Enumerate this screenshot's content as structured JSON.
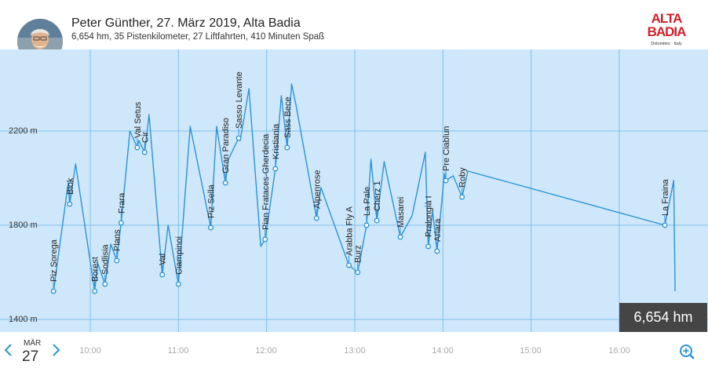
{
  "header": {
    "title": "Peter Günther, 27. März 2019, Alta Badia",
    "subtitle": "6,654 hm, 35 Pistenkilometer, 27 Liftfahrten, 410 Minuten Spaß",
    "logo_line1": "ALTA",
    "logo_line2": "BADIA",
    "logo_tagline": "Dolomites · Italy",
    "brand_color": "#d0202a"
  },
  "date": {
    "month": "MÄR",
    "day": "27"
  },
  "summary_box": "6,654 hm",
  "icons": {
    "prev": "chevron-left-icon",
    "next": "chevron-right-icon",
    "zoom": "zoom-in-icon",
    "avatar": "avatar"
  },
  "colors": {
    "plot_bg": "#cfe7fa",
    "line": "#2a94d6",
    "grid": "#7fc0ea"
  },
  "chart_data": {
    "type": "line",
    "title": "",
    "xlabel": "",
    "ylabel": "",
    "x_ticks": [
      "10:00",
      "11:00",
      "12:00",
      "13:00",
      "14:00",
      "15:00",
      "16:00"
    ],
    "y_ticks": [
      "2200 m",
      "1800 m",
      "1400 m"
    ],
    "ylim": [
      1400,
      2480
    ],
    "xlim": [
      "09:27",
      "16:55"
    ],
    "grid": true,
    "series": [
      {
        "points": [
          {
            "t": "09:35",
            "h": 1520
          },
          {
            "t": "09:45",
            "h": 1980
          },
          {
            "t": "09:46",
            "h": 1890
          },
          {
            "t": "09:50",
            "h": 2060
          },
          {
            "t": "10:03",
            "h": 1520
          },
          {
            "t": "10:05",
            "h": 1640
          },
          {
            "t": "10:10",
            "h": 1550
          },
          {
            "t": "10:14",
            "h": 1720
          },
          {
            "t": "10:18",
            "h": 1650
          },
          {
            "t": "10:21",
            "h": 1810
          },
          {
            "t": "10:27",
            "h": 2200
          },
          {
            "t": "10:32",
            "h": 2130
          },
          {
            "t": "10:33",
            "h": 2160
          },
          {
            "t": "10:37",
            "h": 2110
          },
          {
            "t": "10:40",
            "h": 2270
          },
          {
            "t": "10:49",
            "h": 1590
          },
          {
            "t": "10:53",
            "h": 1800
          },
          {
            "t": "11:00",
            "h": 1550
          },
          {
            "t": "11:08",
            "h": 2220
          },
          {
            "t": "11:22",
            "h": 1790
          },
          {
            "t": "11:26",
            "h": 2220
          },
          {
            "t": "11:32",
            "h": 1980
          },
          {
            "t": "11:34",
            "h": 2080
          },
          {
            "t": "11:41",
            "h": 2170
          },
          {
            "t": "11:42",
            "h": 2160
          },
          {
            "t": "11:48",
            "h": 2380
          },
          {
            "t": "11:56",
            "h": 1710
          },
          {
            "t": "11:59",
            "h": 1740
          },
          {
            "t": "12:06",
            "h": 2040
          },
          {
            "t": "12:10",
            "h": 2350
          },
          {
            "t": "12:14",
            "h": 2130
          },
          {
            "t": "12:17",
            "h": 2400
          },
          {
            "t": "12:20",
            "h": 2310
          },
          {
            "t": "12:34",
            "h": 1830
          },
          {
            "t": "12:37",
            "h": 1960
          },
          {
            "t": "12:56",
            "h": 1630
          },
          {
            "t": "13:02",
            "h": 1600
          },
          {
            "t": "13:08",
            "h": 1800
          },
          {
            "t": "13:11",
            "h": 2080
          },
          {
            "t": "13:15",
            "h": 1820
          },
          {
            "t": "13:20",
            "h": 2070
          },
          {
            "t": "13:31",
            "h": 1750
          },
          {
            "t": "13:39",
            "h": 1840
          },
          {
            "t": "13:48",
            "h": 2110
          },
          {
            "t": "13:50",
            "h": 1710
          },
          {
            "t": "13:53",
            "h": 1860
          },
          {
            "t": "13:56",
            "h": 1690
          },
          {
            "t": "14:01",
            "h": 2020
          },
          {
            "t": "14:02",
            "h": 1990
          },
          {
            "t": "14:07",
            "h": 2010
          },
          {
            "t": "14:13",
            "h": 1920
          },
          {
            "t": "14:17",
            "h": 2030
          },
          {
            "t": "16:31",
            "h": 1800
          },
          {
            "t": "16:37",
            "h": 1990
          },
          {
            "t": "16:38",
            "h": 1520
          }
        ]
      }
    ],
    "lifts": [
      {
        "name": "Piz Sorega",
        "t": "09:35",
        "h": 1520
      },
      {
        "name": "Biok",
        "t": "09:46",
        "h": 1890
      },
      {
        "name": "Borest",
        "t": "10:03",
        "h": 1520
      },
      {
        "name": "Sodlisia",
        "t": "10:10",
        "h": 1550
      },
      {
        "name": "Plans",
        "t": "10:18",
        "h": 1650
      },
      {
        "name": "Frara",
        "t": "10:21",
        "h": 1810
      },
      {
        "name": "Val Setus",
        "t": "10:32",
        "h": 2130
      },
      {
        "name": "Cir",
        "t": "10:37",
        "h": 2110
      },
      {
        "name": "Val",
        "t": "10:49",
        "h": 1590
      },
      {
        "name": "Ciampinoi",
        "t": "11:00",
        "h": 1550
      },
      {
        "name": "Piz Sella",
        "t": "11:22",
        "h": 1790
      },
      {
        "name": "Gran Paradiso",
        "t": "11:32",
        "h": 1980
      },
      {
        "name": "Sasso Levante",
        "t": "11:41",
        "h": 2170
      },
      {
        "name": "Pian Frataces-Gherdecia",
        "t": "11:59",
        "h": 1740
      },
      {
        "name": "Kristiania",
        "t": "12:06",
        "h": 2040
      },
      {
        "name": "Sass Bece",
        "t": "12:14",
        "h": 2130
      },
      {
        "name": "Alpenrose",
        "t": "12:34",
        "h": 1830
      },
      {
        "name": "Arabba Fly A",
        "t": "12:56",
        "h": 1630
      },
      {
        "name": "Burz",
        "t": "13:02",
        "h": 1600
      },
      {
        "name": "La Pale",
        "t": "13:08",
        "h": 1800
      },
      {
        "name": "Cherz 1",
        "t": "13:15",
        "h": 1820
      },
      {
        "name": "Masarei",
        "t": "13:31",
        "h": 1750
      },
      {
        "name": "Pralongià I",
        "t": "13:50",
        "h": 1710
      },
      {
        "name": "Arlara",
        "t": "13:56",
        "h": 1690
      },
      {
        "name": "Pre Ciablun",
        "t": "14:02",
        "h": 1990
      },
      {
        "name": "Roby",
        "t": "14:13",
        "h": 1920
      },
      {
        "name": "La Fraina",
        "t": "16:31",
        "h": 1800
      }
    ]
  }
}
